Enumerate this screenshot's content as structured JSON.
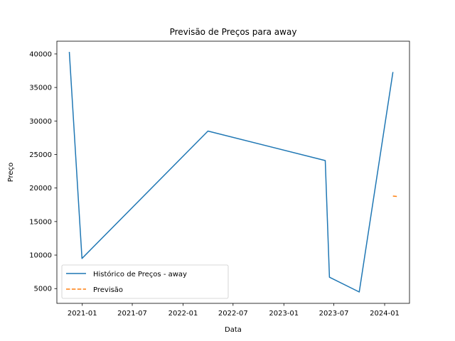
{
  "chart_data": {
    "type": "line",
    "title": "Previsão de Preços para away",
    "xlabel": "Data",
    "ylabel": "Preço",
    "xlim": [
      "2020-10-01",
      "2024-03-31"
    ],
    "ylim": [
      2800,
      41900
    ],
    "x_ticks": [
      "2021-01",
      "2021-07",
      "2022-01",
      "2022-07",
      "2023-01",
      "2023-07",
      "2024-01"
    ],
    "y_ticks": [
      5000,
      10000,
      15000,
      20000,
      25000,
      30000,
      35000,
      40000
    ],
    "grid": false,
    "legend_position": "lower-left",
    "series": [
      {
        "name": "Histórico de Preços - away",
        "color": "#1f77b4",
        "style": "solid",
        "points": [
          {
            "x": "2020-11-15",
            "y": 40300
          },
          {
            "x": "2020-12-31",
            "y": 9500
          },
          {
            "x": "2022-04-01",
            "y": 28500
          },
          {
            "x": "2023-05-31",
            "y": 24100
          },
          {
            "x": "2023-06-15",
            "y": 6700
          },
          {
            "x": "2023-10-01",
            "y": 4500
          },
          {
            "x": "2024-01-31",
            "y": 37300
          }
        ]
      },
      {
        "name": "Previsão",
        "color": "#ff7f0e",
        "style": "dashed",
        "points": [
          {
            "x": "2024-01-31",
            "y": 18800
          },
          {
            "x": "2024-02-15",
            "y": 18750
          }
        ]
      }
    ]
  }
}
